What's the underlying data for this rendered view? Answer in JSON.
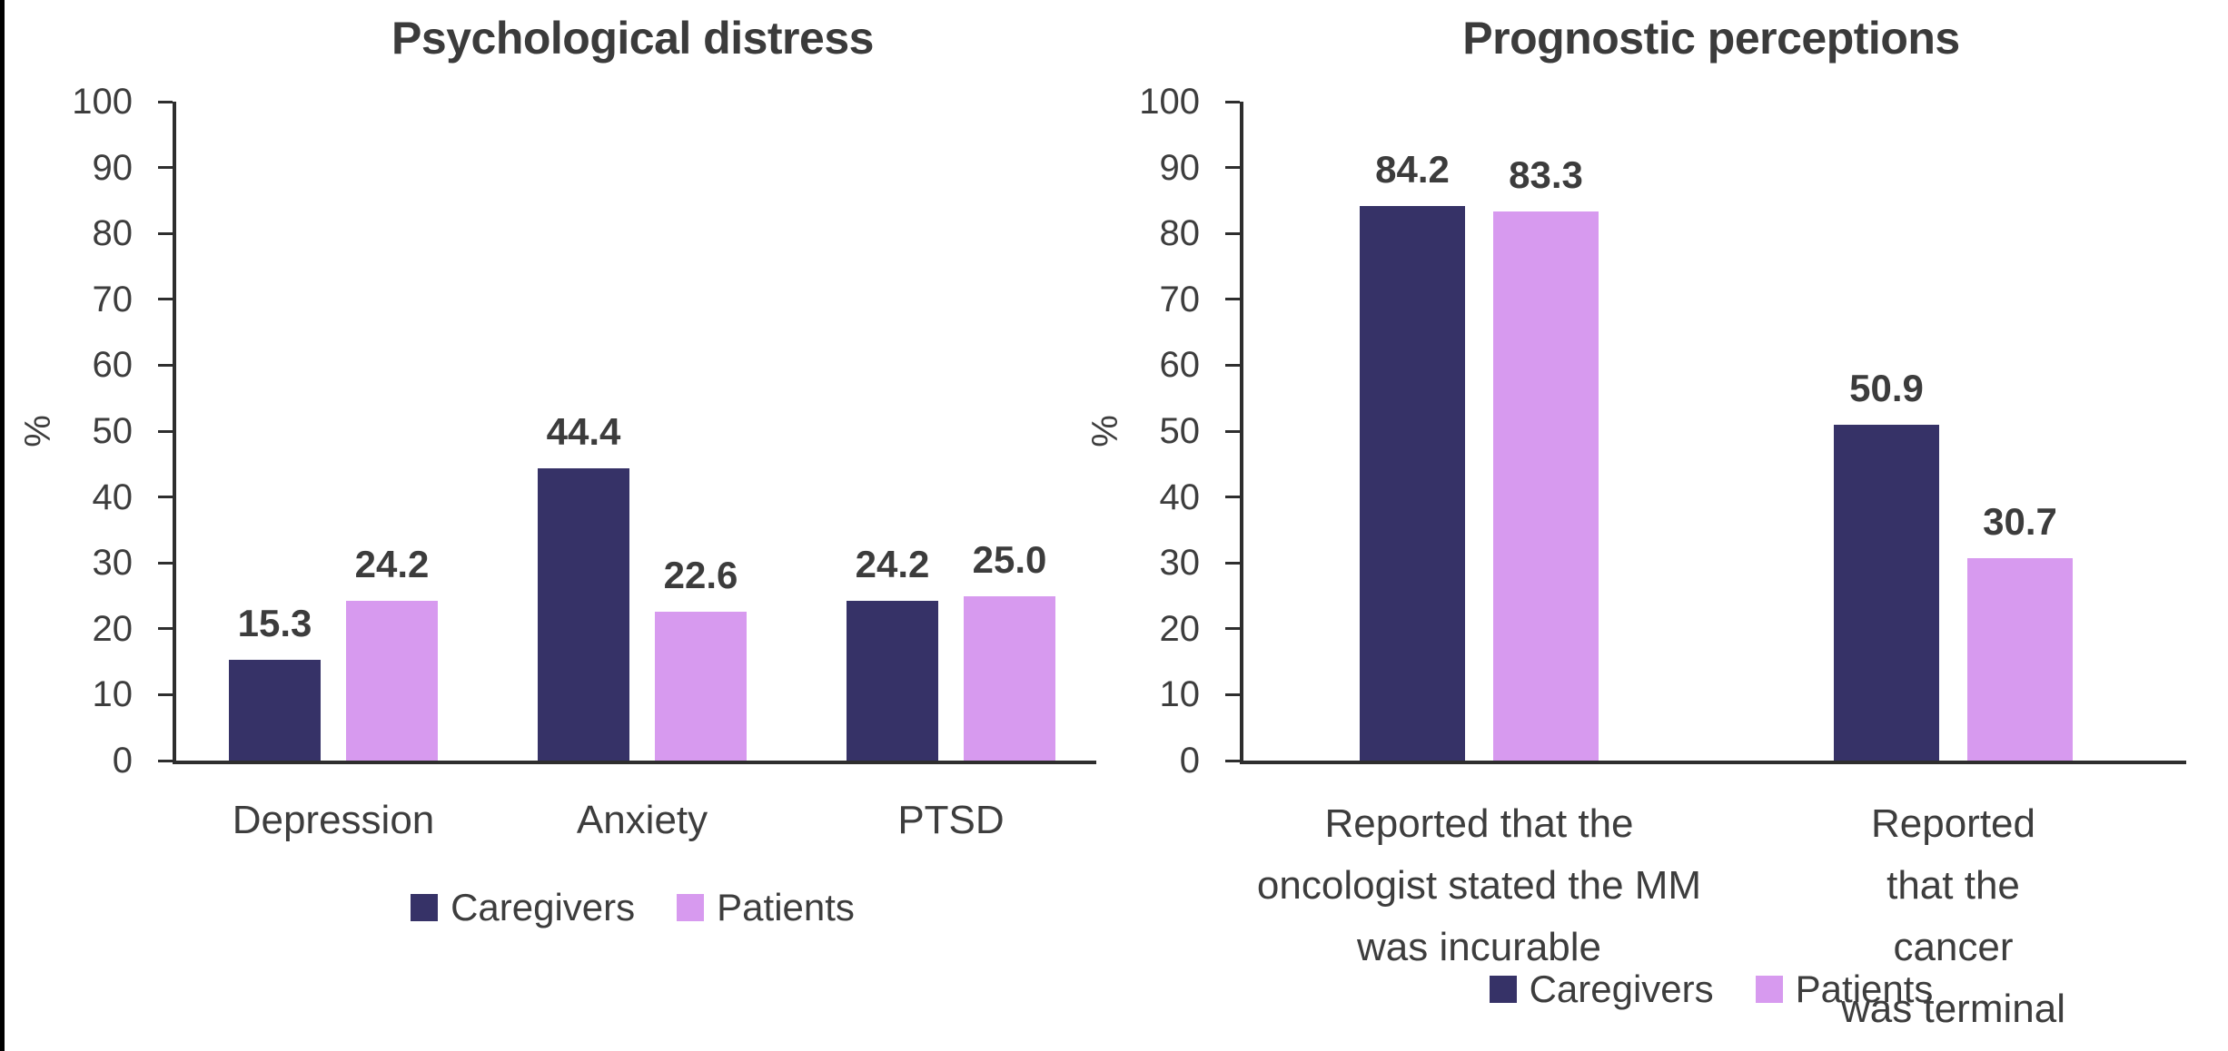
{
  "figure": {
    "background": "#FFFFFF",
    "left_border_color": "#000000",
    "axis_color": "#2E2E2E",
    "text_color": "#3D3D3D",
    "title_color": "#3B3B3B",
    "caregivers_color": "#363267",
    "patients_color": "#D79AEF"
  },
  "chart_data": [
    {
      "type": "bar",
      "title": "Psychological distress",
      "ylabel": "%",
      "xlabel": "",
      "ylim": [
        0,
        100
      ],
      "ytick_step": 10,
      "grid": false,
      "legend_position": "bottom",
      "value_label_decimals": 1,
      "categories": [
        "Depression",
        "Anxiety",
        "PTSD"
      ],
      "series": [
        {
          "name": "Caregivers",
          "color": "#363267",
          "values": [
            15.3,
            44.4,
            24.2
          ]
        },
        {
          "name": "Patients",
          "color": "#D79AEF",
          "values": [
            24.2,
            22.6,
            25.0
          ]
        }
      ]
    },
    {
      "type": "bar",
      "title": "Prognostic perceptions",
      "ylabel": "%",
      "xlabel": "",
      "ylim": [
        0,
        100
      ],
      "ytick_step": 10,
      "grid": false,
      "legend_position": "bottom",
      "value_label_decimals": 1,
      "categories": [
        "Reported that the\noncologist stated the MM\nwas incurable",
        "Reported that the cancer\nwas terminal"
      ],
      "series": [
        {
          "name": "Caregivers",
          "color": "#363267",
          "values": [
            84.2,
            50.9
          ]
        },
        {
          "name": "Patients",
          "color": "#D79AEF",
          "values": [
            83.3,
            30.7
          ]
        }
      ]
    }
  ]
}
